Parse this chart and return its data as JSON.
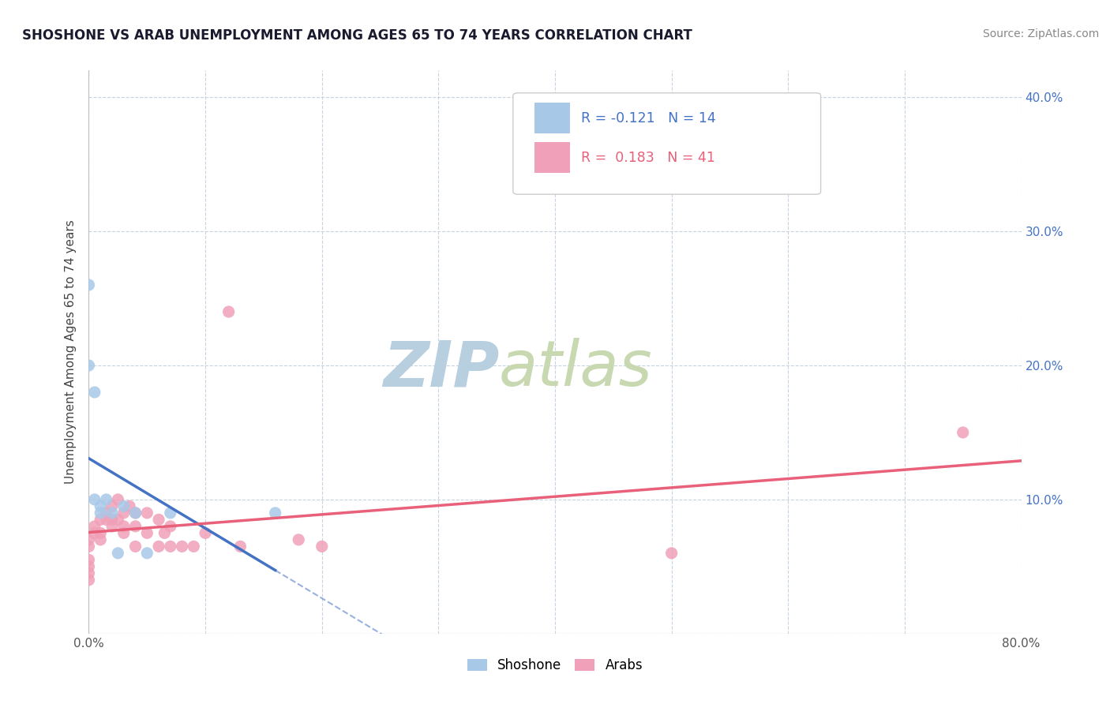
{
  "title": "SHOSHONE VS ARAB UNEMPLOYMENT AMONG AGES 65 TO 74 YEARS CORRELATION CHART",
  "source": "Source: ZipAtlas.com",
  "ylabel": "Unemployment Among Ages 65 to 74 years",
  "xlim": [
    0.0,
    0.8
  ],
  "ylim": [
    0.0,
    0.42
  ],
  "xticks": [
    0.0,
    0.1,
    0.2,
    0.3,
    0.4,
    0.5,
    0.6,
    0.7,
    0.8
  ],
  "xticklabels": [
    "0.0%",
    "",
    "",
    "",
    "",
    "",
    "",
    "",
    "80.0%"
  ],
  "yticks": [
    0.0,
    0.1,
    0.2,
    0.3,
    0.4
  ],
  "yticklabels_right": [
    "",
    "10.0%",
    "20.0%",
    "30.0%",
    "40.0%"
  ],
  "background_color": "#ffffff",
  "grid_color": "#c8d3e0",
  "shoshone_color": "#a8c8e8",
  "arab_color": "#f0a0b8",
  "shoshone_line_color": "#4472c4",
  "arab_line_color": "#e8607a",
  "legend_shoshone_label": "Shoshone",
  "legend_arab_label": "Arabs",
  "R_shoshone": -0.121,
  "N_shoshone": 14,
  "R_arab": 0.183,
  "N_arab": 41,
  "shoshone_x": [
    0.0,
    0.0,
    0.005,
    0.005,
    0.01,
    0.01,
    0.015,
    0.02,
    0.025,
    0.03,
    0.04,
    0.05,
    0.07,
    0.16
  ],
  "shoshone_y": [
    0.26,
    0.2,
    0.18,
    0.1,
    0.09,
    0.095,
    0.1,
    0.09,
    0.06,
    0.095,
    0.09,
    0.06,
    0.09,
    0.09
  ],
  "arab_x": [
    0.0,
    0.0,
    0.0,
    0.0,
    0.0,
    0.0,
    0.005,
    0.005,
    0.01,
    0.01,
    0.01,
    0.015,
    0.015,
    0.02,
    0.02,
    0.02,
    0.025,
    0.025,
    0.03,
    0.03,
    0.03,
    0.035,
    0.04,
    0.04,
    0.04,
    0.05,
    0.05,
    0.06,
    0.06,
    0.065,
    0.07,
    0.07,
    0.08,
    0.09,
    0.1,
    0.12,
    0.13,
    0.18,
    0.2,
    0.5,
    0.75
  ],
  "arab_y": [
    0.07,
    0.065,
    0.055,
    0.05,
    0.045,
    0.04,
    0.08,
    0.075,
    0.085,
    0.075,
    0.07,
    0.09,
    0.085,
    0.095,
    0.085,
    0.08,
    0.1,
    0.085,
    0.09,
    0.08,
    0.075,
    0.095,
    0.09,
    0.08,
    0.065,
    0.09,
    0.075,
    0.085,
    0.065,
    0.075,
    0.08,
    0.065,
    0.065,
    0.065,
    0.075,
    0.24,
    0.065,
    0.07,
    0.065,
    0.06,
    0.15
  ],
  "watermark_zip": "ZIP",
  "watermark_atlas": "atlas",
  "watermark_color_zip": "#b8cfe0",
  "watermark_color_atlas": "#c8d8b0"
}
